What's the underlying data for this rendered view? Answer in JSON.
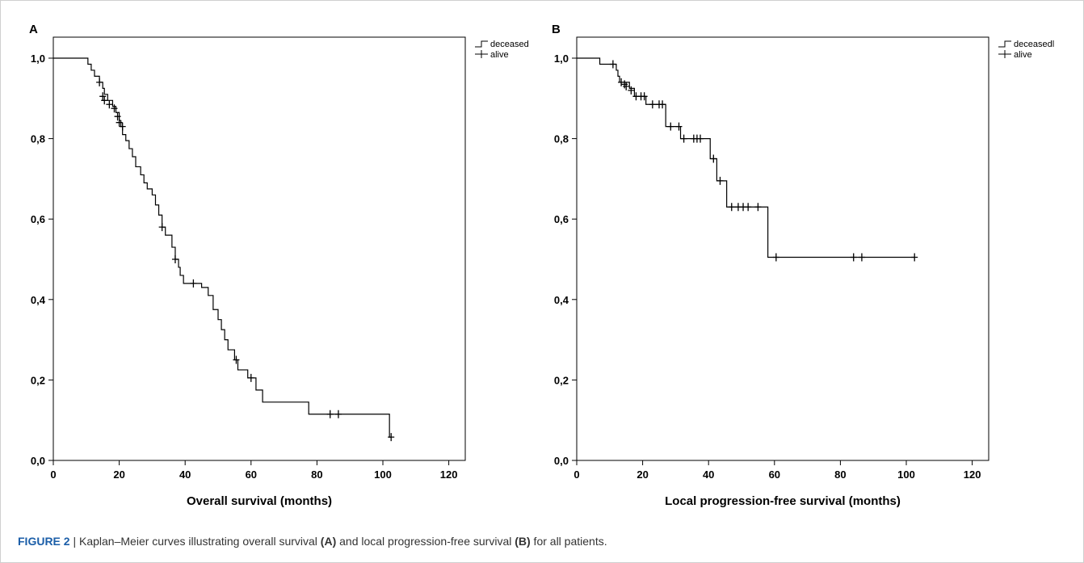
{
  "caption": {
    "figure_label": "FIGURE 2",
    "separator": " | ",
    "text_1": "Kaplan–Meier curves illustrating overall survival ",
    "ref_a": "(A)",
    "text_2": " and local progression-free survival ",
    "ref_b": "(B)",
    "text_3": " for all patients."
  },
  "colors": {
    "line": "#000000",
    "frame": "#000000",
    "caption_accent": "#1b5ea8"
  },
  "chart_data": [
    {
      "type": "line",
      "subtype": "kaplan-meier",
      "panel_label": "A",
      "title": "",
      "xlabel": "Overall survival (months)",
      "ylabel": "",
      "xlim": [
        0,
        125
      ],
      "ylim": [
        0,
        1.0
      ],
      "xticks": [
        "0",
        "20",
        "40",
        "60",
        "80",
        "100",
        "120"
      ],
      "xtick_values": [
        0,
        20,
        40,
        60,
        80,
        100,
        120
      ],
      "yticks": [
        "0,0",
        "0,2",
        "0,4",
        "0,6",
        "0,8",
        "1,0"
      ],
      "ytick_values": [
        0,
        0.2,
        0.4,
        0.6,
        0.8,
        1.0
      ],
      "grid": false,
      "legend": {
        "position": "outside-top-right",
        "entries": [
          "deceased",
          "alive"
        ]
      },
      "series": [
        {
          "name": "deceased",
          "steps": [
            [
              0,
              1.0
            ],
            [
              10.5,
              0.985
            ],
            [
              11.5,
              0.97
            ],
            [
              12.5,
              0.955
            ],
            [
              14,
              0.94
            ],
            [
              15,
              0.925
            ],
            [
              15.5,
              0.91
            ],
            [
              16.5,
              0.895
            ],
            [
              18,
              0.88
            ],
            [
              19,
              0.865
            ],
            [
              20,
              0.845
            ],
            [
              20.5,
              0.83
            ],
            [
              21,
              0.81
            ],
            [
              22,
              0.795
            ],
            [
              23,
              0.775
            ],
            [
              24,
              0.755
            ],
            [
              25,
              0.73
            ],
            [
              26.5,
              0.71
            ],
            [
              27.5,
              0.69
            ],
            [
              28.5,
              0.675
            ],
            [
              30,
              0.66
            ],
            [
              31,
              0.635
            ],
            [
              32,
              0.61
            ],
            [
              33,
              0.58
            ],
            [
              34,
              0.56
            ],
            [
              36,
              0.53
            ],
            [
              37,
              0.5
            ],
            [
              38,
              0.48
            ],
            [
              38.5,
              0.46
            ],
            [
              39.5,
              0.44
            ],
            [
              45,
              0.43
            ],
            [
              47,
              0.41
            ],
            [
              48.5,
              0.375
            ],
            [
              50,
              0.35
            ],
            [
              51,
              0.325
            ],
            [
              52,
              0.3
            ],
            [
              53,
              0.275
            ],
            [
              55,
              0.25
            ],
            [
              56,
              0.225
            ],
            [
              59,
              0.205
            ],
            [
              61.5,
              0.175
            ],
            [
              63.5,
              0.145
            ],
            [
              77.5,
              0.115
            ],
            [
              102,
              0.058
            ]
          ],
          "end_x": 102.5
        },
        {
          "name": "alive",
          "censored": [
            [
              14,
              0.94
            ],
            [
              15,
              0.905
            ],
            [
              15.5,
              0.895
            ],
            [
              17,
              0.885
            ],
            [
              18.5,
              0.875
            ],
            [
              19.5,
              0.855
            ],
            [
              20,
              0.84
            ],
            [
              21,
              0.83
            ],
            [
              33,
              0.58
            ],
            [
              37,
              0.5
            ],
            [
              42.5,
              0.44
            ],
            [
              55.5,
              0.25
            ],
            [
              60,
              0.205
            ],
            [
              84,
              0.115
            ],
            [
              86.5,
              0.115
            ],
            [
              102.5,
              0.058
            ]
          ]
        }
      ]
    },
    {
      "type": "line",
      "subtype": "kaplan-meier",
      "panel_label": "B",
      "title": "",
      "xlabel": "Local progression-free survival (months)",
      "ylabel": "",
      "xlim": [
        0,
        125
      ],
      "ylim": [
        0,
        1.0
      ],
      "xticks": [
        "0",
        "20",
        "40",
        "60",
        "80",
        "100",
        "120"
      ],
      "xtick_values": [
        0,
        20,
        40,
        60,
        80,
        100,
        120
      ],
      "yticks": [
        "0,0",
        "0,2",
        "0,4",
        "0,6",
        "0,8",
        "1,0"
      ],
      "ytick_values": [
        0,
        0.2,
        0.4,
        0.6,
        0.8,
        1.0
      ],
      "grid": false,
      "legend": {
        "position": "outside-top-right",
        "entries": [
          "deceasedl",
          "alive"
        ]
      },
      "series": [
        {
          "name": "deceasedl",
          "steps": [
            [
              0,
              1.0
            ],
            [
              7,
              0.985
            ],
            [
              12,
              0.97
            ],
            [
              12.5,
              0.955
            ],
            [
              13,
              0.94
            ],
            [
              16,
              0.925
            ],
            [
              17.5,
              0.905
            ],
            [
              21,
              0.885
            ],
            [
              27,
              0.83
            ],
            [
              31.5,
              0.8
            ],
            [
              40.5,
              0.75
            ],
            [
              42.5,
              0.695
            ],
            [
              45.5,
              0.63
            ],
            [
              58,
              0.505
            ]
          ],
          "end_x": 102.5
        },
        {
          "name": "alive",
          "censored": [
            [
              11,
              0.985
            ],
            [
              13.5,
              0.94
            ],
            [
              14.5,
              0.935
            ],
            [
              15,
              0.93
            ],
            [
              16.5,
              0.92
            ],
            [
              18,
              0.905
            ],
            [
              19.5,
              0.905
            ],
            [
              20.5,
              0.905
            ],
            [
              23,
              0.885
            ],
            [
              25,
              0.885
            ],
            [
              26,
              0.885
            ],
            [
              28.5,
              0.83
            ],
            [
              31,
              0.83
            ],
            [
              32.5,
              0.8
            ],
            [
              35.5,
              0.8
            ],
            [
              36.5,
              0.8
            ],
            [
              37.5,
              0.8
            ],
            [
              41.5,
              0.75
            ],
            [
              43.5,
              0.695
            ],
            [
              47,
              0.63
            ],
            [
              49,
              0.63
            ],
            [
              50.5,
              0.63
            ],
            [
              52,
              0.63
            ],
            [
              55,
              0.63
            ],
            [
              60.5,
              0.505
            ],
            [
              84,
              0.505
            ],
            [
              86.5,
              0.505
            ],
            [
              102.5,
              0.505
            ]
          ]
        }
      ]
    }
  ]
}
